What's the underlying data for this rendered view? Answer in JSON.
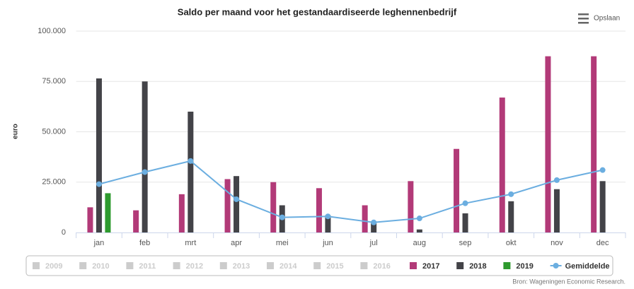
{
  "chart_data": {
    "type": "bar",
    "title": "Saldo per maand voor het gestandaardiseerde leghennenbedrijf",
    "ylabel": "euro",
    "menu": "Opslaan",
    "credits": "Bron: Wageningen Economic Research.",
    "categories": [
      "jan",
      "feb",
      "mrt",
      "apr",
      "mei",
      "jun",
      "jul",
      "aug",
      "sep",
      "okt",
      "nov",
      "dec"
    ],
    "ylim": [
      0,
      100000
    ],
    "yticks": [
      0,
      {
        "value": 25000,
        "label": "25.000"
      },
      {
        "value": 50000,
        "label": "50.000"
      },
      {
        "value": 75000,
        "label": "75.000"
      },
      {
        "value": 100000,
        "label": "100.000"
      }
    ],
    "grid": true,
    "hidden_series": [
      "2009",
      "2010",
      "2011",
      "2012",
      "2013",
      "2014",
      "2015",
      "2016"
    ],
    "hidden_color": "#cccccc",
    "series": [
      {
        "name": "2017",
        "color": "#b23a78",
        "values": [
          12500,
          11000,
          19000,
          26500,
          25000,
          22000,
          13500,
          25500,
          41500,
          67000,
          87500,
          87500
        ]
      },
      {
        "name": "2018",
        "color": "#434348",
        "values": [
          76500,
          75000,
          60000,
          28000,
          13500,
          8500,
          5500,
          1500,
          9500,
          15500,
          21500,
          25500
        ]
      },
      {
        "name": "2019",
        "color": "#2e9a2e",
        "values": [
          19500,
          null,
          null,
          null,
          null,
          null,
          null,
          null,
          null,
          null,
          null,
          null
        ]
      },
      {
        "name": "Gemiddelde",
        "type": "line",
        "color": "#6baee0",
        "values": [
          24000,
          30000,
          35500,
          16500,
          7500,
          8000,
          5000,
          7000,
          14500,
          19000,
          26000,
          31000
        ]
      }
    ]
  }
}
